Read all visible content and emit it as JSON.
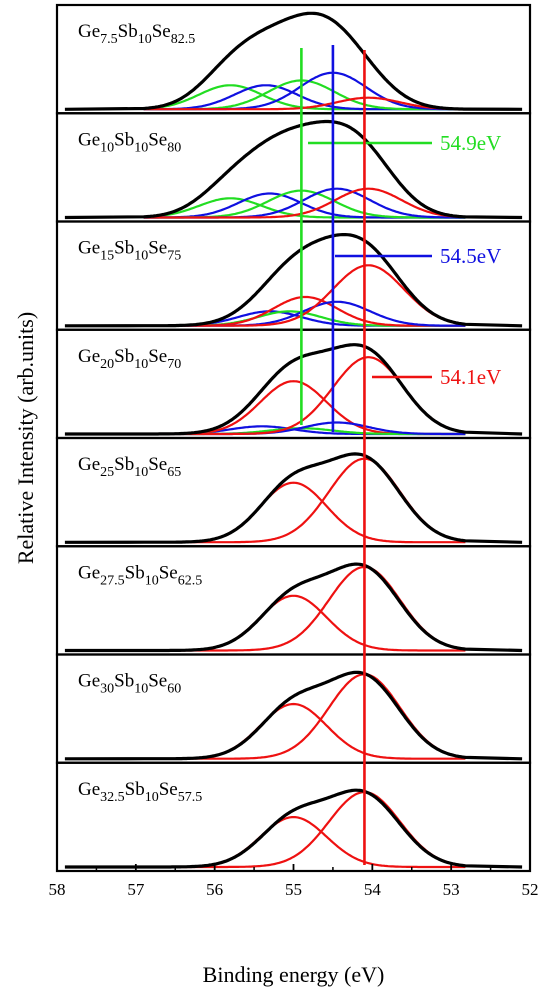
{
  "chart_data": {
    "type": "line",
    "xlabel": "Binding energy (eV)",
    "ylabel": "Relative Intensity (arb.units)",
    "xlim": [
      58,
      52
    ],
    "x_reversed": true,
    "x_ticks": [
      58,
      57,
      56,
      55,
      54,
      53,
      52
    ],
    "colors": {
      "envelope": "#000000",
      "peak_54_9": "#22dd22",
      "peak_54_5": "#1010e0",
      "peak_54_1": "#ee1111"
    },
    "panels": [
      {
        "label": {
          "a": "Ge",
          "s1": "7.5",
          "b": "Sb",
          "s2": "10",
          "c": "Se",
          "s3": "82.5"
        },
        "envelope_max": 1.0,
        "components": [
          {
            "color": "green",
            "center": 55.8,
            "height": 0.25,
            "width": 0.4
          },
          {
            "color": "blue",
            "center": 55.35,
            "height": 0.25,
            "width": 0.4
          },
          {
            "color": "green",
            "center": 54.9,
            "height": 0.3,
            "width": 0.42
          },
          {
            "color": "blue",
            "center": 54.5,
            "height": 0.38,
            "width": 0.42
          },
          {
            "color": "red",
            "center": 54.05,
            "height": 0.12,
            "width": 0.4
          }
        ]
      },
      {
        "label": {
          "a": "Ge",
          "s1": "10",
          "b": "Sb",
          "s2": "10",
          "c": "Se",
          "s3": "80"
        },
        "envelope_max": 1.0,
        "components": [
          {
            "color": "green",
            "center": 55.8,
            "height": 0.2,
            "width": 0.4
          },
          {
            "color": "blue",
            "center": 55.3,
            "height": 0.25,
            "width": 0.4
          },
          {
            "color": "green",
            "center": 54.9,
            "height": 0.28,
            "width": 0.42
          },
          {
            "color": "blue",
            "center": 54.45,
            "height": 0.3,
            "width": 0.42
          },
          {
            "color": "red",
            "center": 54.05,
            "height": 0.3,
            "width": 0.42
          }
        ]
      },
      {
        "label": {
          "a": "Ge",
          "s1": "15",
          "b": "Sb",
          "s2": "10",
          "c": "Se",
          "s3": "75"
        },
        "envelope_max": 0.95,
        "components": [
          {
            "color": "blue",
            "center": 55.3,
            "height": 0.15,
            "width": 0.4
          },
          {
            "color": "green",
            "center": 55.05,
            "height": 0.15,
            "width": 0.4
          },
          {
            "color": "red",
            "center": 54.85,
            "height": 0.3,
            "width": 0.4
          },
          {
            "color": "blue",
            "center": 54.45,
            "height": 0.25,
            "width": 0.42
          },
          {
            "color": "red",
            "center": 54.05,
            "height": 0.63,
            "width": 0.45
          }
        ]
      },
      {
        "label": {
          "a": "Ge",
          "s1": "20",
          "b": "Sb",
          "s2": "10",
          "c": "Se",
          "s3": "70"
        },
        "envelope_max": 0.93,
        "components": [
          {
            "color": "blue",
            "center": 55.4,
            "height": 0.08,
            "width": 0.4
          },
          {
            "color": "red",
            "center": 55.0,
            "height": 0.55,
            "width": 0.42
          },
          {
            "color": "green",
            "center": 54.9,
            "height": 0.06,
            "width": 0.4
          },
          {
            "color": "blue",
            "center": 54.45,
            "height": 0.12,
            "width": 0.4
          },
          {
            "color": "red",
            "center": 54.05,
            "height": 0.8,
            "width": 0.45
          }
        ]
      },
      {
        "label": {
          "a": "Ge",
          "s1": "25",
          "b": "Sb",
          "s2": "10",
          "c": "Se",
          "s3": "65"
        },
        "envelope_max": 0.92,
        "components": [
          {
            "color": "red",
            "center": 55.0,
            "height": 0.62,
            "width": 0.42
          },
          {
            "color": "red",
            "center": 54.1,
            "height": 0.87,
            "width": 0.45
          }
        ]
      },
      {
        "label": {
          "a": "Ge",
          "s1": "27.5",
          "b": "Sb",
          "s2": "10",
          "c": "Se",
          "s3": "62.5"
        },
        "envelope_max": 0.9,
        "components": [
          {
            "color": "red",
            "center": 55.0,
            "height": 0.57,
            "width": 0.42
          },
          {
            "color": "red",
            "center": 54.1,
            "height": 0.87,
            "width": 0.45
          }
        ]
      },
      {
        "label": {
          "a": "Ge",
          "s1": "30",
          "b": "Sb",
          "s2": "10",
          "c": "Se",
          "s3": "60"
        },
        "envelope_max": 0.9,
        "components": [
          {
            "color": "red",
            "center": 55.0,
            "height": 0.57,
            "width": 0.42
          },
          {
            "color": "red",
            "center": 54.1,
            "height": 0.88,
            "width": 0.45
          }
        ]
      },
      {
        "label": {
          "a": "Ge",
          "s1": "32.5",
          "b": "Sb",
          "s2": "10",
          "c": "Se",
          "s3": "57.5"
        },
        "envelope_max": 0.8,
        "components": [
          {
            "color": "red",
            "center": 55.0,
            "height": 0.52,
            "width": 0.42
          },
          {
            "color": "red",
            "center": 54.1,
            "height": 0.78,
            "width": 0.45
          }
        ]
      }
    ],
    "reference_lines": [
      {
        "x": 54.9,
        "color": "green",
        "label": "54.9eV"
      },
      {
        "x": 54.5,
        "color": "blue",
        "label": "54.5eV"
      },
      {
        "x": 54.1,
        "color": "red",
        "label": "54.1eV"
      }
    ]
  }
}
